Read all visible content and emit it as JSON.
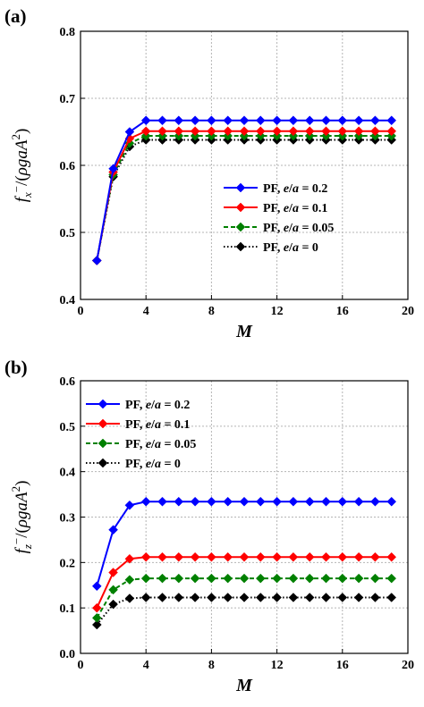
{
  "chart_data": [
    {
      "type": "line",
      "panel_label": "(a)",
      "xlabel": "M",
      "ylabel": "f_x^-/(ρgaA^2)",
      "xlim": [
        0,
        20
      ],
      "ylim": [
        0.4,
        0.8
      ],
      "xticks": [
        0,
        4,
        8,
        12,
        16,
        20
      ],
      "yticks": [
        0.4,
        0.5,
        0.6,
        0.7,
        0.8
      ],
      "grid": true,
      "legend_position": "center-right",
      "x": [
        1,
        2,
        3,
        4,
        5,
        6,
        7,
        8,
        9,
        10,
        11,
        12,
        13,
        14,
        15,
        16,
        17,
        18,
        19
      ],
      "series": [
        {
          "name": "PF, e/a = 0.2",
          "color": "#0000ff",
          "line": "solid",
          "marker": "diamond",
          "values": [
            0.458,
            0.595,
            0.65,
            0.667,
            0.667,
            0.667,
            0.667,
            0.667,
            0.667,
            0.667,
            0.667,
            0.667,
            0.667,
            0.667,
            0.667,
            0.667,
            0.667,
            0.667,
            0.667
          ]
        },
        {
          "name": "PF, e/a = 0.1",
          "color": "#ff0000",
          "line": "solid",
          "marker": "diamond",
          "values": [
            0.458,
            0.59,
            0.64,
            0.651,
            0.651,
            0.651,
            0.651,
            0.651,
            0.651,
            0.651,
            0.651,
            0.651,
            0.651,
            0.651,
            0.651,
            0.651,
            0.651,
            0.651,
            0.651
          ]
        },
        {
          "name": "PF, e/a = 0.05",
          "color": "#008000",
          "line": "dashed",
          "marker": "diamond",
          "values": [
            0.458,
            0.586,
            0.633,
            0.644,
            0.644,
            0.644,
            0.644,
            0.644,
            0.644,
            0.644,
            0.644,
            0.644,
            0.644,
            0.644,
            0.644,
            0.644,
            0.644,
            0.644,
            0.644
          ]
        },
        {
          "name": "PF, e/a = 0",
          "color": "#000000",
          "line": "dotted",
          "marker": "diamond",
          "values": [
            0.458,
            0.583,
            0.628,
            0.638,
            0.638,
            0.638,
            0.638,
            0.638,
            0.638,
            0.638,
            0.638,
            0.638,
            0.638,
            0.638,
            0.638,
            0.638,
            0.638,
            0.638,
            0.638
          ]
        }
      ]
    },
    {
      "type": "line",
      "panel_label": "(b)",
      "xlabel": "M",
      "ylabel": "f_z^-/(ρgaA^2)",
      "xlim": [
        0,
        20
      ],
      "ylim": [
        0.0,
        0.6
      ],
      "xticks": [
        0,
        4,
        8,
        12,
        16,
        20
      ],
      "yticks": [
        0.0,
        0.1,
        0.2,
        0.3,
        0.4,
        0.5,
        0.6
      ],
      "grid": true,
      "legend_position": "top-left",
      "x": [
        1,
        2,
        3,
        4,
        5,
        6,
        7,
        8,
        9,
        10,
        11,
        12,
        13,
        14,
        15,
        16,
        17,
        18,
        19
      ],
      "series": [
        {
          "name": "PF, e/a = 0.2",
          "color": "#0000ff",
          "line": "solid",
          "marker": "diamond",
          "values": [
            0.148,
            0.272,
            0.326,
            0.334,
            0.334,
            0.334,
            0.334,
            0.334,
            0.334,
            0.334,
            0.334,
            0.334,
            0.334,
            0.334,
            0.334,
            0.334,
            0.334,
            0.334,
            0.334
          ]
        },
        {
          "name": "PF, e/a = 0.1",
          "color": "#ff0000",
          "line": "solid",
          "marker": "diamond",
          "values": [
            0.1,
            0.178,
            0.208,
            0.212,
            0.212,
            0.212,
            0.212,
            0.212,
            0.212,
            0.212,
            0.212,
            0.212,
            0.212,
            0.212,
            0.212,
            0.212,
            0.212,
            0.212,
            0.212
          ]
        },
        {
          "name": "PF, e/a = 0.05",
          "color": "#008000",
          "line": "dashed",
          "marker": "diamond",
          "values": [
            0.078,
            0.14,
            0.162,
            0.165,
            0.165,
            0.165,
            0.165,
            0.165,
            0.165,
            0.165,
            0.165,
            0.165,
            0.165,
            0.165,
            0.165,
            0.165,
            0.165,
            0.165,
            0.165
          ]
        },
        {
          "name": "PF, e/a = 0",
          "color": "#000000",
          "line": "dotted",
          "marker": "diamond",
          "values": [
            0.063,
            0.108,
            0.121,
            0.123,
            0.123,
            0.123,
            0.123,
            0.123,
            0.123,
            0.123,
            0.123,
            0.123,
            0.123,
            0.123,
            0.123,
            0.123,
            0.123,
            0.123,
            0.123
          ]
        }
      ]
    }
  ]
}
